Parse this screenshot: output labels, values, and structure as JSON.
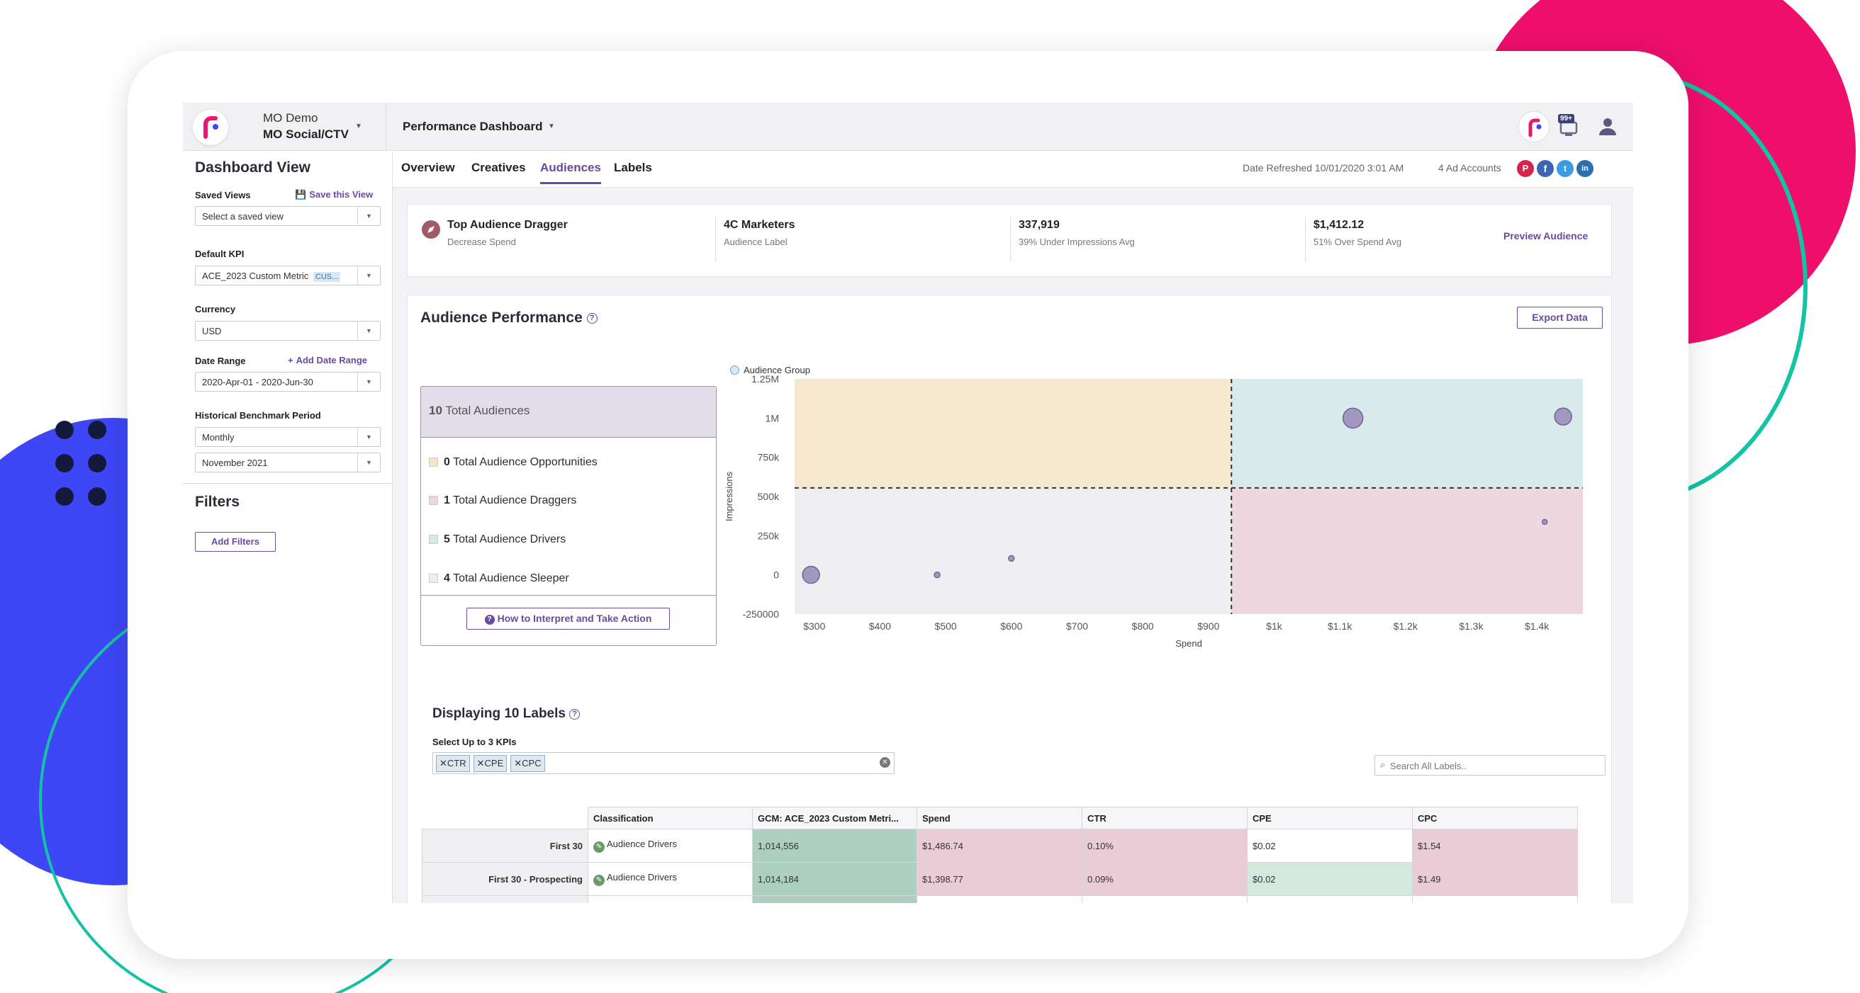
{
  "topbar": {
    "account": "MO Demo",
    "sub_account": "MO Social/CTV",
    "dashboard": "Performance Dashboard",
    "notification_count": "99+"
  },
  "sidebar": {
    "title": "Dashboard View",
    "saved_views_label": "Saved Views",
    "save_view_link": "Save this View",
    "saved_view_placeholder": "Select a saved view",
    "default_kpi_label": "Default KPI",
    "default_kpi_value": "ACE_2023 Custom Metric",
    "default_kpi_badge": "CUS...",
    "currency_label": "Currency",
    "currency_value": "USD",
    "date_range_label": "Date Range",
    "add_date_range": "Add Date Range",
    "date_range_value": "2020-Apr-01 - 2020-Jun-30",
    "benchmark_label": "Historical Benchmark Period",
    "benchmark_period": "Monthly",
    "benchmark_month": "November 2021",
    "filters_title": "Filters",
    "add_filters": "Add Filters"
  },
  "tabs": [
    "Overview",
    "Creatives",
    "Audiences",
    "Labels"
  ],
  "active_tab": "Audiences",
  "meta": {
    "date_refreshed": "Date Refreshed 10/01/2020 3:01 AM",
    "ad_accounts": "4 Ad Accounts"
  },
  "summary": {
    "title": "Top Audience Dragger",
    "subtitle": "Decrease Spend",
    "label_name": "4C Marketers",
    "label_caption": "Audience Label",
    "impressions": "337,919",
    "impressions_caption": "39% Under Impressions Avg",
    "spend": "$1,412.12",
    "spend_caption": "51% Over Spend Avg",
    "preview": "Preview Audience"
  },
  "performance": {
    "title": "Audience Performance",
    "export": "Export Data",
    "total_count": "10",
    "total_text": "Total Audiences",
    "breakdown": [
      {
        "count": "0",
        "text": "Total Audience Opportunities",
        "color": "#f6e6c8"
      },
      {
        "count": "1",
        "text": "Total Audience Draggers",
        "color": "#ecd6dc"
      },
      {
        "count": "5",
        "text": "Total Audience Drivers",
        "color": "#d6e9e7"
      },
      {
        "count": "4",
        "text": "Total Audience Sleeper",
        "color": "#eeeef0"
      }
    ],
    "help_button": "How to Interpret and Take Action"
  },
  "chart_data": {
    "type": "scatter",
    "legend": [
      "Audience Group"
    ],
    "legend_position": "top-left",
    "xlabel": "Spend",
    "ylabel": "Impressions",
    "x_tick_labels": [
      "$300",
      "$400",
      "$500",
      "$600",
      "$700",
      "$800",
      "$900",
      "$1k",
      "$1.1k",
      "$1.2k",
      "$1.3k",
      "$1.4k"
    ],
    "y_tick_labels": [
      "1.25M",
      "1M",
      "750k",
      "500k",
      "250k",
      "0",
      "-250000"
    ],
    "xlim": [
      270,
      1470
    ],
    "ylim": [
      -250000,
      1250000
    ],
    "spend_avg": 935,
    "impressions_avg": 555000,
    "quadrant_colors": {
      "top_left": "#f6e8cf",
      "top_right": "#d9eaea",
      "bottom_left": "#eeeef0",
      "bottom_right": "#ecd8de"
    },
    "points": [
      {
        "x": 295,
        "y": 0,
        "r": 12
      },
      {
        "x": 487,
        "y": 0,
        "r": 4
      },
      {
        "x": 600,
        "y": 105000,
        "r": 4
      },
      {
        "x": 1120,
        "y": 1000000,
        "r": 14
      },
      {
        "x": 1440,
        "y": 1010000,
        "r": 12
      },
      {
        "x": 1412,
        "y": 337919,
        "r": 3.5
      }
    ]
  },
  "labels_section": {
    "title": "Displaying 10 Labels",
    "kpi_select_label": "Select Up to 3 KPIs",
    "kpi_chips": [
      "CTR",
      "CPE",
      "CPC"
    ],
    "search_placeholder": "Search All Labels.."
  },
  "table": {
    "headers": [
      "Classification",
      "GCM: ACE_2023 Custom Metri...",
      "Spend",
      "CTR",
      "CPE",
      "CPC"
    ],
    "rows": [
      {
        "name": "First 30",
        "classification": "Audience Drivers",
        "values": [
          "1,014,556",
          "$1,486.74",
          "0.10%",
          "$0.02",
          "$1.54"
        ]
      },
      {
        "name": "First 30 - Prospecting",
        "classification": "Audience Drivers",
        "values": [
          "1,014,184",
          "$1,398.77",
          "0.09%",
          "$0.02",
          "$1.49"
        ]
      }
    ]
  }
}
